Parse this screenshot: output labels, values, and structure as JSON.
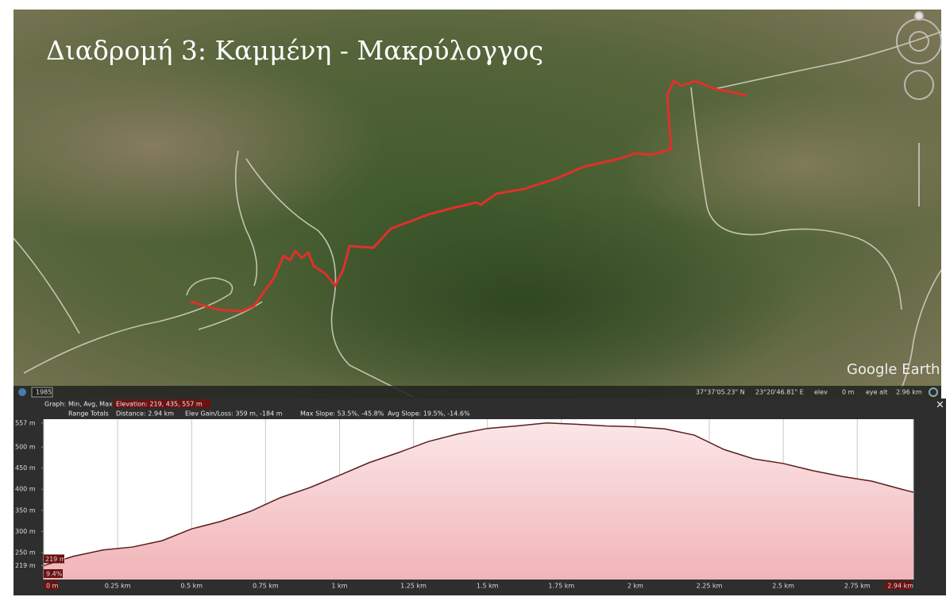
{
  "map": {
    "title": "Διαδρομή 3: Καμμένη - Μακρύλογγος",
    "watermark": "Google Earth",
    "year": "1985",
    "status": {
      "lat": "37°37'05.23\" N",
      "lon": "23°20'46.81\" E",
      "elev_label": "elev",
      "elev": "0 m",
      "eye_alt_label": "eye alt",
      "eye_alt": "2.96 km"
    }
  },
  "profile_header": {
    "graph_label": "Graph:",
    "stats_label": "Min, Avg, Max",
    "elevation": "Elevation: 219, 435, 557 m",
    "range_label": "Range Totals",
    "distance": "Distance: 2.94 km",
    "gain_loss": "Elev Gain/Loss: 359 m, -184 m",
    "max_slope": "Max Slope: 53.5%, -45.8%",
    "avg_slope": "Avg Slope: 19.5%, -14.6%",
    "close": "×"
  },
  "chart_data": {
    "type": "area",
    "x": [
      0,
      0.1,
      0.2,
      0.3,
      0.4,
      0.5,
      0.6,
      0.7,
      0.8,
      0.9,
      1.0,
      1.1,
      1.2,
      1.3,
      1.4,
      1.5,
      1.6,
      1.7,
      1.8,
      1.9,
      2.0,
      2.1,
      2.2,
      2.3,
      2.4,
      2.5,
      2.6,
      2.7,
      2.8,
      2.9,
      2.94
    ],
    "values": [
      219,
      241,
      256,
      263,
      278,
      306,
      324,
      348,
      380,
      404,
      433,
      463,
      487,
      513,
      531,
      544,
      550,
      557,
      554,
      550,
      548,
      543,
      528,
      494,
      472,
      461,
      444,
      430,
      419,
      400,
      393
    ],
    "color": "#5a1e1e",
    "xlim": [
      0,
      2.94
    ],
    "ylim": [
      186,
      566
    ],
    "xticks": [
      {
        "value": 0,
        "label": "0 m"
      },
      {
        "value": 0.25,
        "label": "0.25 km"
      },
      {
        "value": 0.5,
        "label": "0.5 km"
      },
      {
        "value": 0.75,
        "label": "0.75 km"
      },
      {
        "value": 1,
        "label": "1 km"
      },
      {
        "value": 1.25,
        "label": "1.25 km"
      },
      {
        "value": 1.5,
        "label": "1.5 km"
      },
      {
        "value": 1.75,
        "label": "1.75 km"
      },
      {
        "value": 2,
        "label": "2 km"
      },
      {
        "value": 2.25,
        "label": "2.25 km"
      },
      {
        "value": 2.5,
        "label": "2.5 km"
      },
      {
        "value": 2.75,
        "label": "2.75 km"
      },
      {
        "value": 2.94,
        "label": "2.94 km"
      }
    ],
    "yticks": [
      {
        "value": 557,
        "label": "557 m"
      },
      {
        "value": 500,
        "label": "500 m"
      },
      {
        "value": 450,
        "label": "450 m"
      },
      {
        "value": 400,
        "label": "400 m"
      },
      {
        "value": 350,
        "label": "350 m"
      },
      {
        "value": 300,
        "label": "300 m"
      },
      {
        "value": 250,
        "label": "250 m"
      },
      {
        "value": 219,
        "label": "219 m"
      }
    ],
    "cursor": {
      "elevation": "219 m",
      "slope": "9.4%"
    },
    "grid": true
  }
}
